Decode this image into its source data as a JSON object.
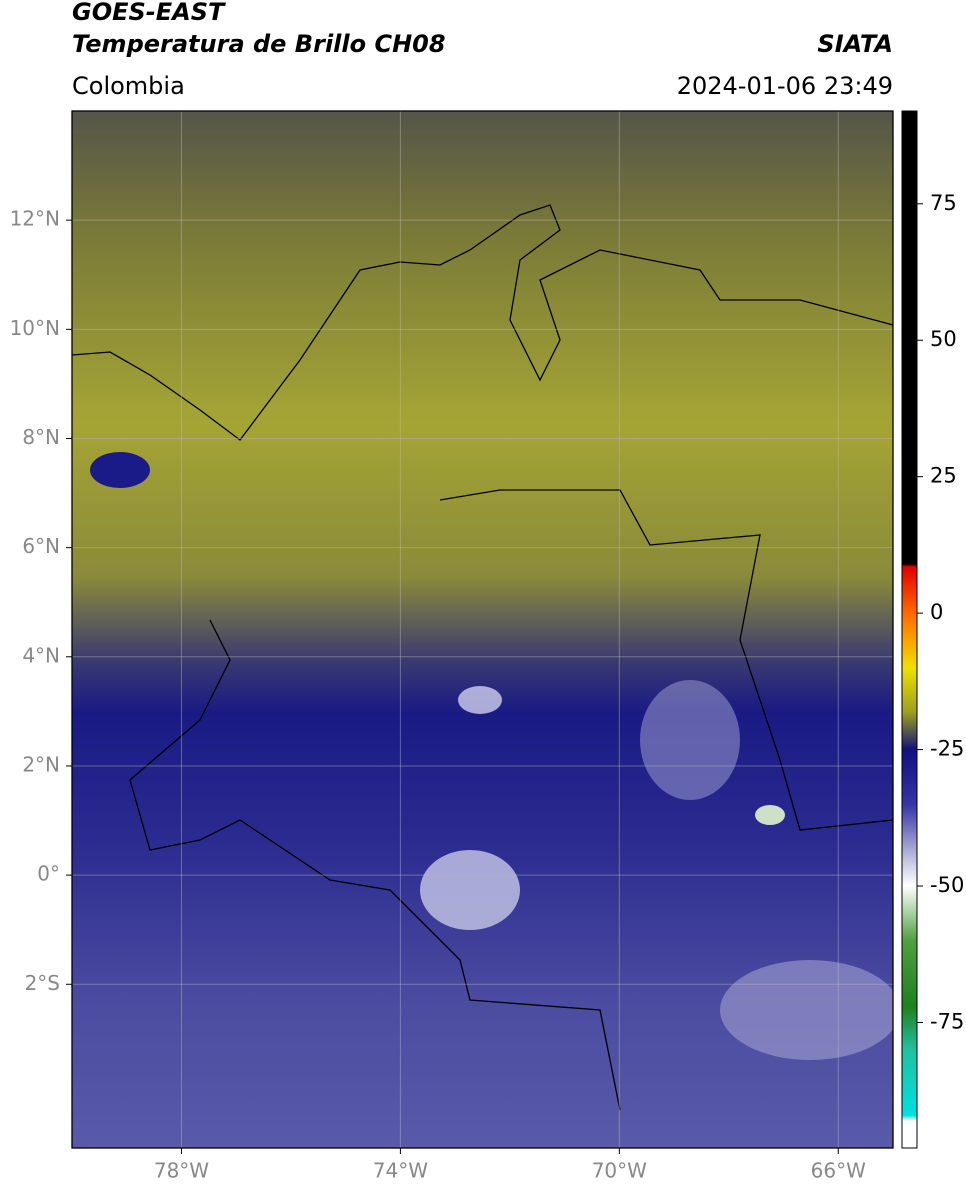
{
  "header": {
    "title": "GOES-EAST",
    "subtitle": "Temperatura de Brillo CH08",
    "agency": "SIATA",
    "region": "Colombia",
    "datetime": "2024-01-06 23:49"
  },
  "map": {
    "xlim": [
      -80,
      -65
    ],
    "ylim": [
      -5,
      14
    ],
    "grid": true,
    "xticks": [
      {
        "value": -78,
        "label": "78°W"
      },
      {
        "value": -74,
        "label": "74°W"
      },
      {
        "value": -70,
        "label": "70°W"
      },
      {
        "value": -66,
        "label": "66°W"
      }
    ],
    "yticks": [
      {
        "value": 12,
        "label": "12°N"
      },
      {
        "value": 10,
        "label": "10°N"
      },
      {
        "value": 8,
        "label": "8°N"
      },
      {
        "value": 6,
        "label": "6°N"
      },
      {
        "value": 4,
        "label": "4°N"
      },
      {
        "value": 2,
        "label": "2°N"
      },
      {
        "value": 0,
        "label": "0°"
      },
      {
        "value": -2,
        "label": "2°S"
      }
    ]
  },
  "colorbar": {
    "lim": [
      -98,
      92
    ],
    "ticks": [
      75,
      50,
      25,
      0,
      -25,
      -50,
      -75
    ],
    "colormap": [
      {
        "value": 92,
        "color": "#000000"
      },
      {
        "value": 9,
        "color": "#000000"
      },
      {
        "value": 8.5,
        "color": "#e00000"
      },
      {
        "value": 0,
        "color": "#ff6a00"
      },
      {
        "value": -10,
        "color": "#f0e000"
      },
      {
        "value": -18,
        "color": "#a0a020"
      },
      {
        "value": -22,
        "color": "#505050"
      },
      {
        "value": -25,
        "color": "#101080"
      },
      {
        "value": -35,
        "color": "#3535a5"
      },
      {
        "value": -45,
        "color": "#c0c0e0"
      },
      {
        "value": -50,
        "color": "#ffffff"
      },
      {
        "value": -60,
        "color": "#50a040"
      },
      {
        "value": -72,
        "color": "#208020"
      },
      {
        "value": -80,
        "color": "#20c0a0"
      },
      {
        "value": -92,
        "color": "#00e0e0"
      },
      {
        "value": -93,
        "color": "#ffffff"
      },
      {
        "value": -98,
        "color": "#ffffff"
      }
    ]
  }
}
